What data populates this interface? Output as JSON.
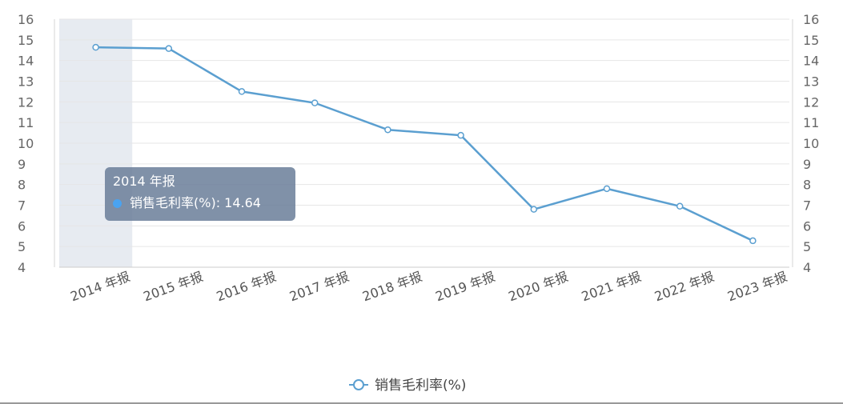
{
  "chart_data": {
    "type": "line",
    "categories": [
      "2014 年报",
      "2015 年报",
      "2016 年报",
      "2017 年报",
      "2018 年报",
      "2019 年报",
      "2020 年报",
      "2021 年报",
      "2022 年报",
      "2023 年报"
    ],
    "series": [
      {
        "name": "销售毛利率(%)",
        "values": [
          14.64,
          14.58,
          12.5,
          11.95,
          10.65,
          10.38,
          6.8,
          7.8,
          6.95,
          5.28
        ],
        "color": "#5b9fd0"
      }
    ],
    "ylim": [
      4,
      16
    ],
    "yticks": [
      "4",
      "5",
      "6",
      "7",
      "8",
      "9",
      "10",
      "11",
      "12",
      "13",
      "14",
      "15",
      "16"
    ],
    "highlight_category": "2014 年报",
    "legend_position": "bottom-center",
    "grid": true
  },
  "tooltip": {
    "title": "2014 年报",
    "series_label": "销售毛利率(%): 14.64"
  },
  "legend": {
    "label": "销售毛利率(%)"
  }
}
